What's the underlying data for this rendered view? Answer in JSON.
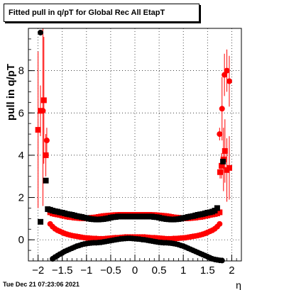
{
  "title": "Fitted pull in q/pT for Global Rec All EtapT",
  "timestamp": "Tue Dec 21 07:23:06 2021",
  "chart_data": {
    "type": "scatter",
    "title": "Fitted pull in q/pT for Global Rec All EtapT",
    "xlabel": "η",
    "ylabel": "pull in q/pT",
    "xlim": [
      -2.2,
      2.2
    ],
    "ylim": [
      -1.0,
      10.0
    ],
    "grid": true,
    "x_ticks": [
      "−2",
      "−1.5",
      "−1",
      "−0.5",
      "0",
      "0.5",
      "1",
      "1.5",
      "2"
    ],
    "y_ticks": [
      "0",
      "2",
      "4",
      "6",
      "8"
    ],
    "series": [
      {
        "marker": "circle",
        "color": "#ff0000",
        "x": [
          -1.75,
          -1.7,
          -1.65,
          -1.6,
          -1.55,
          -1.5,
          -1.45,
          -1.4,
          -1.35,
          -1.3,
          -1.25,
          -1.2,
          -1.15,
          -1.1,
          -1.05,
          -1.0,
          -0.95,
          -0.9,
          -0.85,
          -0.8,
          -0.75,
          -0.7,
          -0.65,
          -0.6,
          -0.55,
          -0.5,
          -0.45,
          -0.4,
          -0.35,
          -0.3,
          -0.25,
          -0.2,
          -0.15,
          -0.1,
          -0.05,
          0.0,
          0.05,
          0.1,
          0.15,
          0.2,
          0.25,
          0.3,
          0.35,
          0.4,
          0.45,
          0.5,
          0.55,
          0.6,
          0.65,
          0.7,
          0.75,
          0.8,
          0.85,
          0.9,
          0.95,
          1.0,
          1.05,
          1.1,
          1.15,
          1.2,
          1.25,
          1.3,
          1.35,
          1.4,
          1.45,
          1.5,
          1.55,
          1.6,
          1.65,
          1.7,
          1.75
        ],
        "y": [
          0.75,
          0.62,
          0.52,
          0.45,
          0.4,
          0.35,
          0.3,
          0.26,
          0.23,
          0.2,
          0.18,
          0.16,
          0.14,
          0.12,
          0.1,
          0.09,
          0.08,
          0.07,
          0.06,
          0.06,
          0.05,
          0.05,
          0.05,
          0.06,
          0.07,
          0.08,
          0.09,
          0.1,
          0.1,
          0.11,
          0.12,
          0.13,
          0.13,
          0.13,
          0.13,
          0.13,
          0.13,
          0.13,
          0.13,
          0.13,
          0.12,
          0.11,
          0.1,
          0.1,
          0.09,
          0.08,
          0.07,
          0.06,
          0.05,
          0.05,
          0.05,
          0.06,
          0.06,
          0.07,
          0.08,
          0.09,
          0.1,
          0.12,
          0.14,
          0.16,
          0.18,
          0.2,
          0.23,
          0.26,
          0.3,
          0.35,
          0.4,
          0.45,
          0.52,
          0.62,
          0.75
        ],
        "err": []
      },
      {
        "marker": "square",
        "color": "#ff0000",
        "x": [
          -1.75,
          -1.7,
          -1.65,
          -1.6,
          -1.55,
          -1.5,
          -1.45,
          -1.4,
          -1.35,
          -1.3,
          -1.25,
          -1.2,
          -1.15,
          -1.1,
          -1.05,
          -1.0,
          -0.95,
          -0.9,
          -0.85,
          -0.8,
          -0.75,
          -0.7,
          -0.65,
          -0.6,
          -0.55,
          -0.5,
          -0.45,
          -0.4,
          -0.35,
          -0.3,
          -0.25,
          -0.2,
          -0.15,
          -0.1,
          -0.05,
          0.0,
          0.05,
          0.1,
          0.15,
          0.2,
          0.25,
          0.3,
          0.35,
          0.4,
          0.45,
          0.5,
          0.55,
          0.6,
          0.65,
          0.7,
          0.75,
          0.8,
          0.85,
          0.9,
          0.95,
          1.0,
          1.05,
          1.1,
          1.15,
          1.2,
          1.25,
          1.3,
          1.35,
          1.4,
          1.45,
          1.5,
          1.55,
          1.6,
          1.65,
          1.7,
          1.75
        ],
        "y": [
          1.3,
          1.25,
          1.22,
          1.2,
          1.18,
          1.15,
          1.13,
          1.1,
          1.08,
          1.07,
          1.05,
          1.04,
          1.03,
          1.02,
          1.02,
          1.02,
          1.03,
          1.04,
          1.05,
          1.06,
          1.08,
          1.1,
          1.12,
          1.13,
          1.14,
          1.15,
          1.16,
          1.17,
          1.17,
          1.18,
          1.18,
          1.18,
          1.18,
          1.18,
          1.18,
          1.18,
          1.18,
          1.18,
          1.18,
          1.18,
          1.18,
          1.18,
          1.17,
          1.17,
          1.16,
          1.15,
          1.14,
          1.13,
          1.12,
          1.1,
          1.08,
          1.06,
          1.05,
          1.04,
          1.03,
          1.02,
          1.02,
          1.02,
          1.03,
          1.04,
          1.05,
          1.07,
          1.08,
          1.1,
          1.13,
          1.15,
          1.18,
          1.2,
          1.22,
          1.25,
          1.3
        ],
        "err": []
      },
      {
        "marker": "circle",
        "color": "#000000",
        "x": [
          -1.7,
          -1.65,
          -1.6,
          -1.55,
          -1.5,
          -1.45,
          -1.4,
          -1.35,
          -1.3,
          -1.25,
          -1.2,
          -1.15,
          -1.1,
          -1.05,
          -1.0,
          -0.95,
          -0.9,
          -0.85,
          -0.8,
          -0.75,
          -0.7,
          -0.65,
          -0.6,
          -0.55,
          -0.5,
          -0.45,
          -0.4,
          -0.35,
          -0.3,
          -0.25,
          -0.2,
          -0.15,
          -0.1,
          -0.05,
          0.0,
          0.05,
          0.1,
          0.15,
          0.2,
          0.25,
          0.3,
          0.35,
          0.4,
          0.45,
          0.5,
          0.55,
          0.6,
          0.65,
          0.7,
          0.75,
          0.8,
          0.85,
          0.9,
          0.95,
          1.0,
          1.05,
          1.1,
          1.15,
          1.2,
          1.25,
          1.3,
          1.35,
          1.4,
          1.45,
          1.5,
          1.55,
          1.6,
          1.65,
          1.7,
          1.75,
          1.8
        ],
        "y": [
          -0.9,
          -0.82,
          -0.75,
          -0.68,
          -0.62,
          -0.55,
          -0.5,
          -0.45,
          -0.4,
          -0.35,
          -0.3,
          -0.27,
          -0.23,
          -0.2,
          -0.18,
          -0.16,
          -0.15,
          -0.14,
          -0.14,
          -0.13,
          -0.12,
          -0.1,
          -0.08,
          -0.06,
          -0.04,
          -0.02,
          0.0,
          0.02,
          0.04,
          0.05,
          0.06,
          0.07,
          0.07,
          0.06,
          0.05,
          0.04,
          0.03,
          0.01,
          0.0,
          -0.02,
          -0.04,
          -0.06,
          -0.08,
          -0.1,
          -0.12,
          -0.13,
          -0.14,
          -0.14,
          -0.15,
          -0.16,
          -0.18,
          -0.2,
          -0.23,
          -0.27,
          -0.3,
          -0.35,
          -0.4,
          -0.45,
          -0.5,
          -0.55,
          -0.6,
          -0.65,
          -0.7,
          -0.75,
          -0.8,
          -0.85,
          -0.9,
          -0.93,
          -0.95,
          -0.97,
          -0.98
        ],
        "err": []
      },
      {
        "marker": "square",
        "color": "#000000",
        "x": [
          -1.8,
          -1.75,
          -1.7,
          -1.65,
          -1.6,
          -1.55,
          -1.5,
          -1.45,
          -1.4,
          -1.35,
          -1.3,
          -1.25,
          -1.2,
          -1.15,
          -1.1,
          -1.05,
          -1.0,
          -0.95,
          -0.9,
          -0.85,
          -0.8,
          -0.75,
          -0.7,
          -0.65,
          -0.6,
          -0.55,
          -0.5,
          -0.45,
          -0.4,
          -0.35,
          -0.3,
          -0.25,
          -0.2,
          -0.15,
          -0.1,
          -0.05,
          0.0,
          0.05,
          0.1,
          0.15,
          0.2,
          0.25,
          0.3,
          0.35,
          0.4,
          0.45,
          0.5,
          0.55,
          0.6,
          0.65,
          0.7,
          0.75,
          0.8,
          0.85,
          0.9,
          0.95,
          1.0,
          1.05,
          1.1,
          1.15,
          1.2,
          1.25,
          1.3,
          1.35,
          1.4,
          1.45,
          1.5,
          1.55,
          1.6,
          1.65,
          1.7
        ],
        "y": [
          1.45,
          1.42,
          1.38,
          1.35,
          1.33,
          1.3,
          1.28,
          1.25,
          1.22,
          1.2,
          1.18,
          1.15,
          1.12,
          1.1,
          1.08,
          1.05,
          1.03,
          1.0,
          0.98,
          0.97,
          0.96,
          0.96,
          0.97,
          0.98,
          1.0,
          1.02,
          1.05,
          1.07,
          1.08,
          1.1,
          1.1,
          1.1,
          1.1,
          1.1,
          1.1,
          1.1,
          1.1,
          1.1,
          1.1,
          1.1,
          1.1,
          1.1,
          1.1,
          1.1,
          1.08,
          1.07,
          1.05,
          1.02,
          1.0,
          0.98,
          0.97,
          0.96,
          0.96,
          0.97,
          0.98,
          1.0,
          1.03,
          1.05,
          1.08,
          1.1,
          1.12,
          1.15,
          1.18,
          1.2,
          1.22,
          1.25,
          1.28,
          1.3,
          1.33,
          1.38,
          1.5
        ],
        "err": []
      },
      {
        "marker": "circle",
        "color": "#ff0000",
        "x": [
          -1.9,
          -1.82,
          1.75,
          1.8,
          1.85,
          1.9,
          1.95
        ],
        "y": [
          6.1,
          4.7,
          5.0,
          6.2,
          7.8,
          8.0,
          7.5
        ],
        "err": [
          4.5,
          0.6,
          0.3,
          1.5,
          1.0,
          1.0,
          1.2
        ]
      },
      {
        "marker": "square",
        "color": "#ff0000",
        "x": [
          -2.0,
          -1.95,
          -1.88,
          -1.84,
          1.76,
          1.79,
          1.83,
          1.86,
          1.9,
          1.95
        ],
        "y": [
          5.2,
          6.1,
          6.6,
          4.0,
          3.2,
          3.5,
          3.8,
          4.2,
          3.3,
          3.4
        ],
        "err": [
          3.7,
          1.2,
          3.0,
          1.0,
          0.3,
          0.6,
          1.5,
          1.5,
          1.5,
          1.5
        ]
      },
      {
        "marker": "circle",
        "color": "#000000",
        "x": [
          -1.95
        ],
        "y": [
          9.8
        ],
        "err": []
      },
      {
        "marker": "square",
        "color": "#000000",
        "x": [
          -1.95,
          -1.84,
          1.82
        ],
        "y": [
          0.85,
          2.8,
          3.7
        ],
        "err": [
          0,
          0,
          0
        ]
      }
    ]
  }
}
